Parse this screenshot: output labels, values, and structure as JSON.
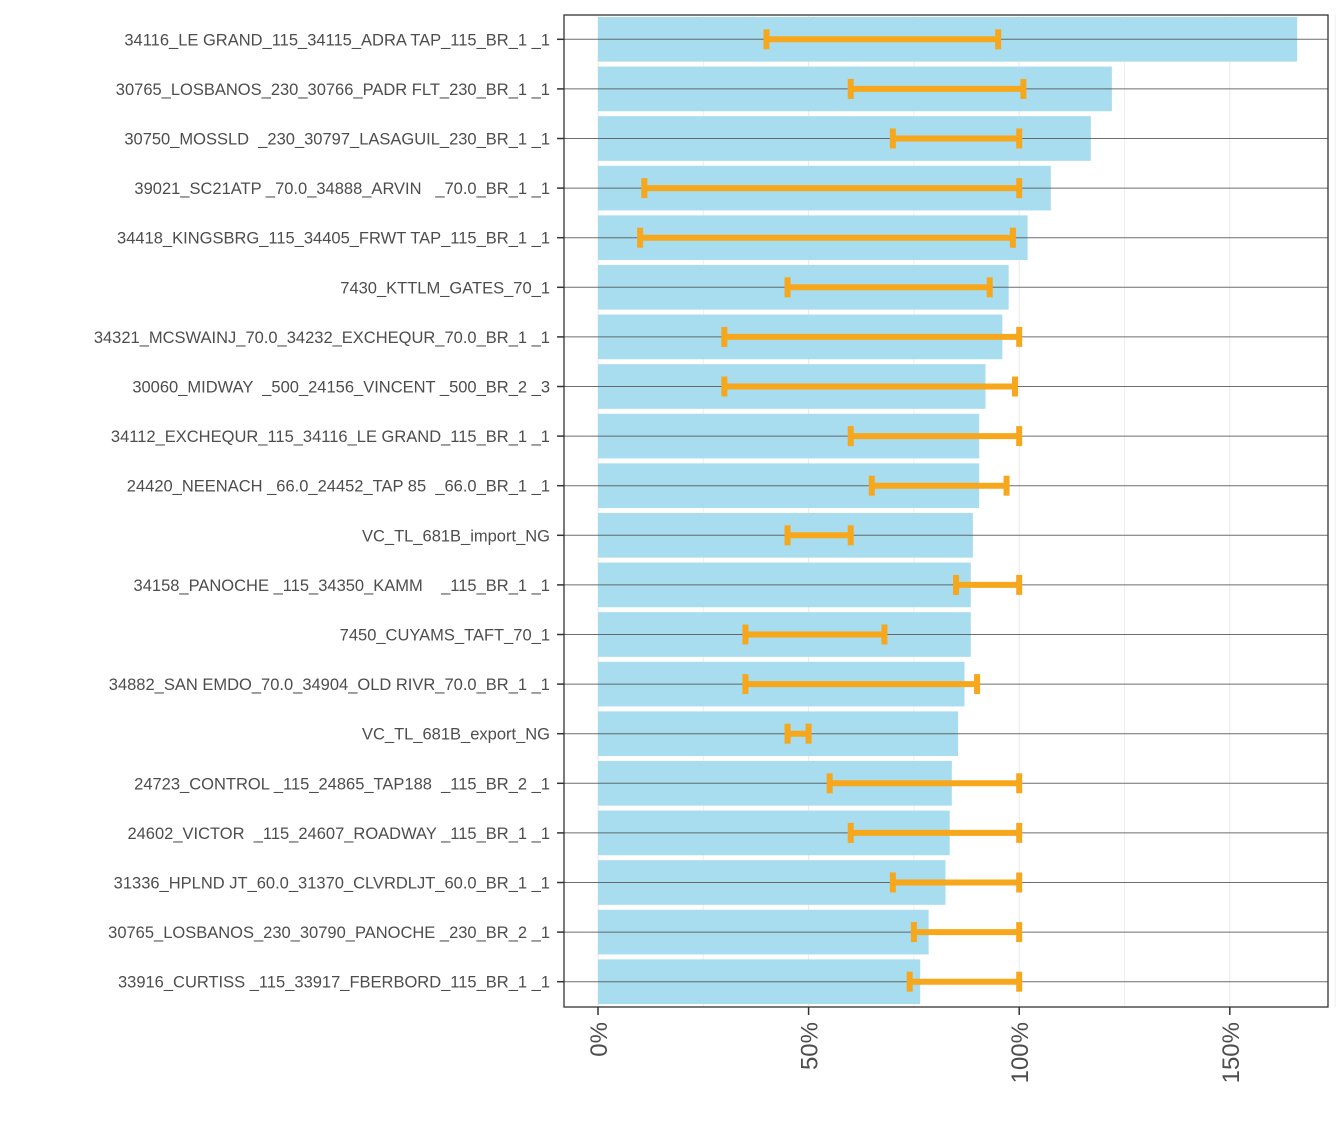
{
  "chart_data": {
    "type": "bar",
    "orientation": "horizontal",
    "title": "",
    "xlabel": "",
    "ylabel": "",
    "xlim": [
      -8,
      174
    ],
    "x_ticks": [
      0,
      50,
      100,
      150
    ],
    "x_tick_labels": [
      "0%",
      "50%",
      "100%",
      "150%"
    ],
    "x_tick_label_rotation": "vertical",
    "grid": true,
    "legend": "none",
    "colors": {
      "bar": "#a8dcef",
      "errorbar": "#f7a71b",
      "row_line": "#555555",
      "grid": "#ebebeb"
    },
    "categories": [
      "34116_LE GRAND_115_34115_ADRA TAP_115_BR_1 _1",
      "30765_LOSBANOS_230_30766_PADR FLT_230_BR_1 _1",
      "30750_MOSSLD  _230_30797_LASAGUIL_230_BR_1 _1",
      "39021_SC21ATP _70.0_34888_ARVIN   _70.0_BR_1 _1",
      "34418_KINGSBRG_115_34405_FRWT TAP_115_BR_1 _1",
      "7430_KTTLM_GATES_70_1",
      "34321_MCSWAINJ_70.0_34232_EXCHEQUR_70.0_BR_1 _1",
      "30060_MIDWAY  _500_24156_VINCENT _500_BR_2 _3",
      "34112_EXCHEQUR_115_34116_LE GRAND_115_BR_1 _1",
      "24420_NEENACH _66.0_24452_TAP 85  _66.0_BR_1 _1",
      "VC_TL_681B_import_NG",
      "34158_PANOCHE _115_34350_KAMM    _115_BR_1 _1",
      "7450_CUYAMS_TAFT_70_1",
      "34882_SAN EMDO_70.0_34904_OLD RIVR_70.0_BR_1 _1",
      "VC_TL_681B_export_NG",
      "24723_CONTROL _115_24865_TAP188  _115_BR_2 _1",
      "24602_VICTOR  _115_24607_ROADWAY _115_BR_1 _1",
      "31336_HPLND JT_60.0_31370_CLVRDLJT_60.0_BR_1 _1",
      "30765_LOSBANOS_230_30790_PANOCHE _230_BR_2 _1",
      "33916_CURTISS _115_33917_FBERBORD_115_BR_1 _1"
    ],
    "values": [
      166,
      122,
      117,
      107.5,
      102,
      97.5,
      96,
      92,
      90.5,
      90.5,
      89,
      88.5,
      88.5,
      87,
      85.5,
      84,
      83.5,
      82.5,
      78.5,
      76.5
    ],
    "error_low": [
      40,
      60,
      70,
      11,
      10,
      45,
      30,
      30,
      60,
      65,
      45,
      85,
      35,
      35,
      45,
      55,
      60,
      70,
      75,
      74
    ],
    "error_high": [
      95,
      101,
      100,
      100,
      98.5,
      93,
      100,
      99,
      100,
      97,
      60,
      100,
      68,
      90,
      50,
      100,
      100,
      100,
      100,
      100
    ]
  }
}
